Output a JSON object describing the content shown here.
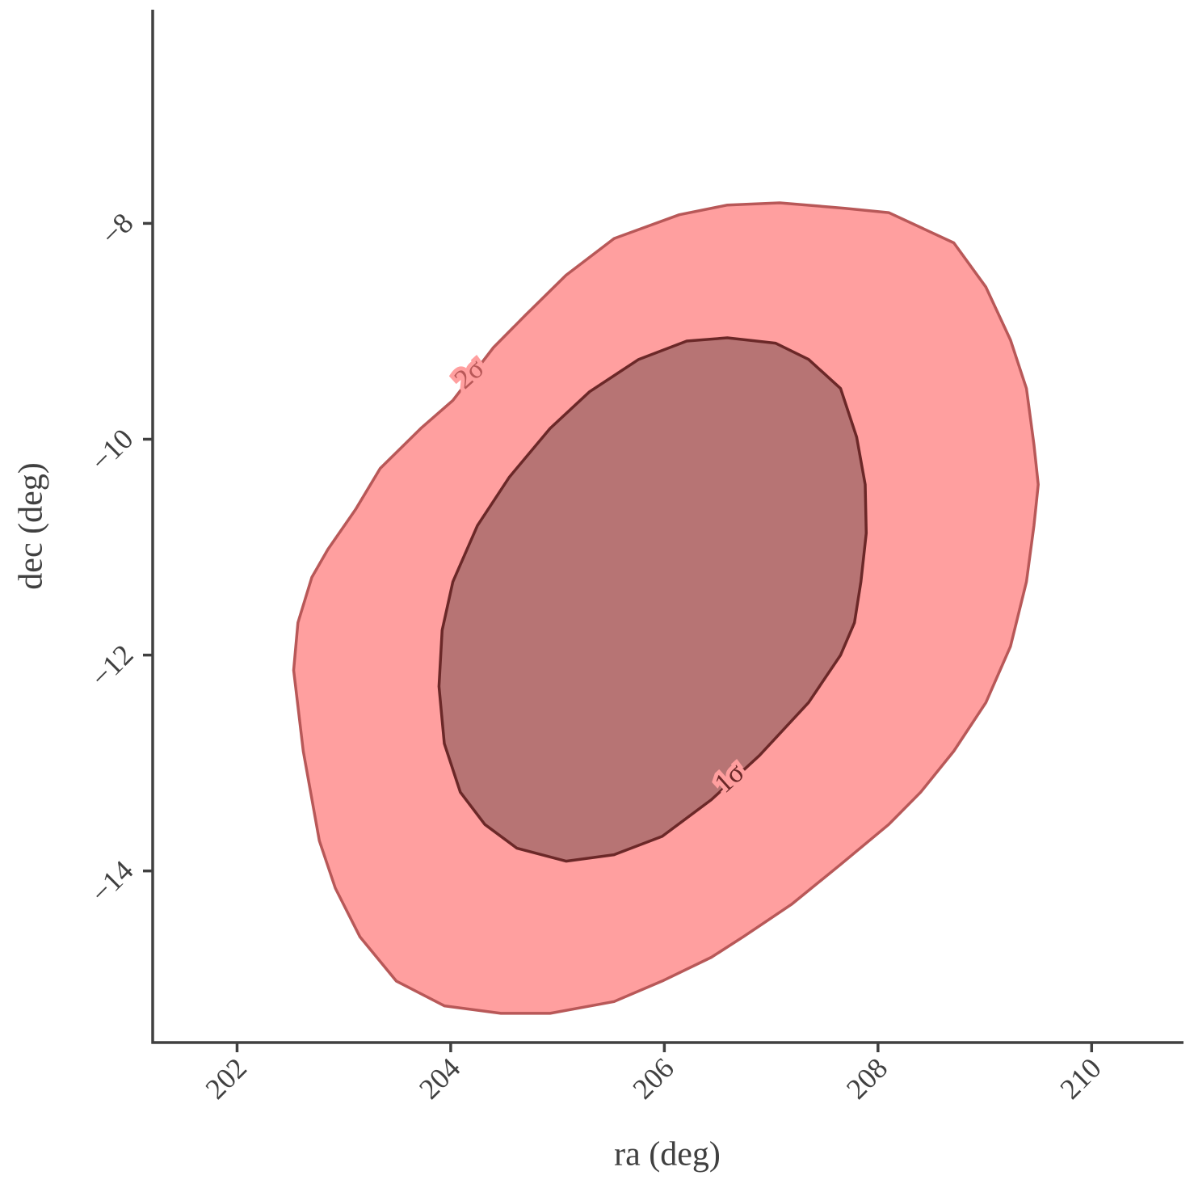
{
  "chart_data": {
    "type": "contour",
    "x_label": "ra (deg)",
    "y_label": "dec (deg)",
    "xlim": [
      201.21,
      210.86
    ],
    "ylim": [
      -15.59,
      -6.02
    ],
    "xticks": [
      202,
      204,
      206,
      208,
      210
    ],
    "yticks": [
      {
        "value": -8,
        "label": "−8"
      },
      {
        "value": -10,
        "label": "−10"
      },
      {
        "value": -12,
        "label": "−12"
      },
      {
        "value": -14,
        "label": "−14"
      }
    ],
    "series": [
      {
        "name": "2σ",
        "color": "#ff9f9f",
        "edge_color": "#b85858",
        "x": [
          207.08,
          207.69,
          208.1,
          208.71,
          209.01,
          209.24,
          209.39,
          209.46,
          209.5,
          209.46,
          209.39,
          209.24,
          209.01,
          208.71,
          208.4,
          208.1,
          207.65,
          207.19,
          206.74,
          206.44,
          205.98,
          205.53,
          204.93,
          204.47,
          203.94,
          203.49,
          203.15,
          202.92,
          202.77,
          202.62,
          202.53,
          202.57,
          202.7,
          202.85,
          203.11,
          203.34,
          203.72,
          204.02,
          204.4,
          204.7,
          205.08,
          205.53,
          206.14,
          206.59
        ],
        "y": [
          -7.81,
          -7.86,
          -7.9,
          -8.18,
          -8.59,
          -9.08,
          -9.53,
          -10.05,
          -10.42,
          -10.8,
          -11.32,
          -11.92,
          -12.44,
          -12.89,
          -13.27,
          -13.57,
          -13.94,
          -14.31,
          -14.61,
          -14.8,
          -15.02,
          -15.21,
          -15.32,
          -15.32,
          -15.25,
          -15.02,
          -14.61,
          -14.16,
          -13.72,
          -12.89,
          -12.14,
          -11.7,
          -11.28,
          -11.02,
          -10.65,
          -10.27,
          -9.9,
          -9.64,
          -9.15,
          -8.85,
          -8.48,
          -8.14,
          -7.92,
          -7.83
        ]
      },
      {
        "name": "1σ",
        "color": "#b77474",
        "edge_color": "#6b2828",
        "x": [
          206.59,
          207.04,
          207.35,
          207.65,
          207.8,
          207.88,
          207.89,
          207.84,
          207.78,
          207.65,
          207.35,
          206.89,
          206.44,
          205.98,
          205.53,
          205.08,
          204.62,
          204.32,
          204.09,
          203.94,
          203.89,
          203.92,
          204.02,
          204.25,
          204.55,
          204.93,
          205.3,
          205.76,
          206.21
        ],
        "y": [
          -9.06,
          -9.11,
          -9.26,
          -9.53,
          -9.98,
          -10.42,
          -10.87,
          -11.32,
          -11.7,
          -12.0,
          -12.44,
          -12.93,
          -13.34,
          -13.68,
          -13.85,
          -13.91,
          -13.79,
          -13.57,
          -13.27,
          -12.82,
          -12.29,
          -11.77,
          -11.32,
          -10.8,
          -10.35,
          -9.9,
          -9.56,
          -9.26,
          -9.09
        ]
      }
    ]
  }
}
